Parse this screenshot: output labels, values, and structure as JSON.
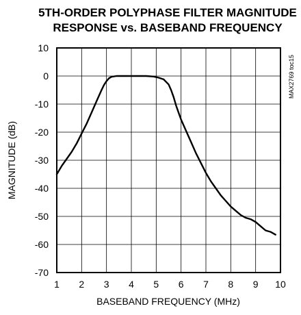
{
  "chart_data": {
    "type": "line",
    "title_lines": [
      "5TH-ORDER POLYPHASE FILTER MAGNITUDE",
      "RESPONSE vs. BASEBAND FREQUENCY"
    ],
    "xlabel": "BASEBAND FREQUENCY (MHz)",
    "ylabel": "MAGNITUDE (dB)",
    "annotation": "MAX2769 toc15",
    "xlim": [
      1,
      10
    ],
    "ylim": [
      -70,
      10
    ],
    "xticks": [
      "1",
      "2",
      "3",
      "4",
      "5",
      "6",
      "7",
      "8",
      "9",
      "10"
    ],
    "yticks": [
      "10",
      "0",
      "-10",
      "-20",
      "-30",
      "-40",
      "-50",
      "-60",
      "-70"
    ],
    "grid": true,
    "series": [
      {
        "x": [
          1.0,
          1.2,
          1.4,
          1.6,
          1.8,
          2.0,
          2.2,
          2.4,
          2.6,
          2.8,
          2.9,
          3.0,
          3.1,
          3.2,
          3.4,
          3.6,
          3.8,
          4.0,
          4.3,
          4.6,
          4.9,
          5.1,
          5.3,
          5.5,
          5.6,
          5.7,
          5.8,
          5.9,
          6.0,
          6.2,
          6.4,
          6.6,
          6.8,
          7.0,
          7.2,
          7.4,
          7.6,
          7.8,
          8.0,
          8.2,
          8.4,
          8.6,
          8.8,
          9.0,
          9.2,
          9.4,
          9.6,
          9.8
        ],
        "y": [
          -35,
          -32,
          -29.5,
          -27,
          -24,
          -20.5,
          -17,
          -13,
          -9,
          -5,
          -3.2,
          -1.8,
          -0.8,
          -0.3,
          0,
          0,
          0,
          0,
          0,
          0,
          -0.2,
          -0.6,
          -1.2,
          -3,
          -5,
          -7.5,
          -10.5,
          -13,
          -15.5,
          -19.5,
          -23.5,
          -27.5,
          -31,
          -34.5,
          -37.5,
          -40,
          -42.5,
          -44.5,
          -46.5,
          -48,
          -49.5,
          -50.5,
          -51,
          -52,
          -53.5,
          -55,
          -55.5,
          -56.5
        ]
      }
    ]
  }
}
